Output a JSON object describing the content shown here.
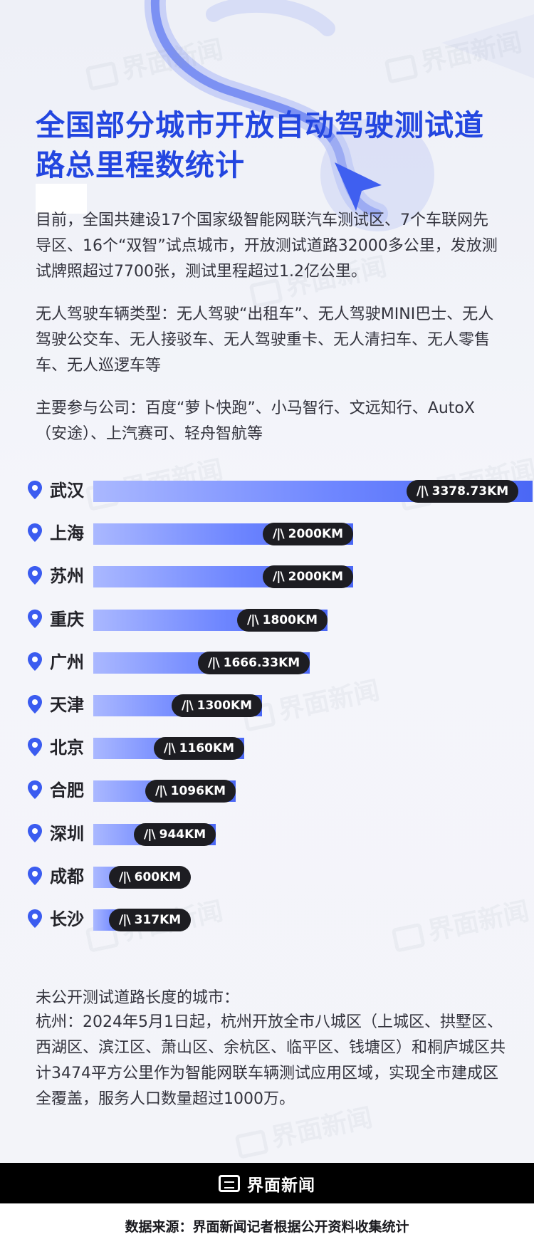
{
  "title": "全国部分城市开放自动驾驶测试道路总里程数统计",
  "paragraphs": {
    "intro": "目前，全国共建设17个国家级智能网联汽车测试区、7个车联网先导区、16个“双智”试点城市，开放测试道路32000多公里，发放测试牌照超过7700张，测试里程超过1.2亿公里。",
    "vehicles": "无人驾驶车辆类型：无人驾驶“出租车”、无人驾驶MINI巴士、无人驾驶公交车、无人接驳车、无人驾驶重卡、无人清扫车、无人零售车、无人巡逻车等",
    "companies": "主要参与公司：百度“萝卜快跑”、小马智行、文远知行、AutoX（安途）、上汽赛可、轻舟智航等"
  },
  "chart_data": {
    "type": "bar",
    "orientation": "horizontal",
    "unit": "KM",
    "categories": [
      "武汉",
      "上海",
      "苏州",
      "重庆",
      "广州",
      "天津",
      "北京",
      "合肥",
      "深圳",
      "成都",
      "长沙"
    ],
    "values": [
      3378.73,
      2000,
      2000,
      1800,
      1666.33,
      1300,
      1160,
      1096,
      944,
      600,
      317
    ],
    "value_labels": [
      "3378.73KM",
      "2000KM",
      "2000KM",
      "1800KM",
      "1666.33KM",
      "1300KM",
      "1160KM",
      "1096KM",
      "944KM",
      "600KM",
      "317KM"
    ],
    "xlim": [
      0,
      3378.73
    ]
  },
  "footnote": {
    "title": "未公开测试道路长度的城市：",
    "text": "杭州：2024年5月1日起，杭州开放全市八城区（上城区、拱墅区、西湖区、滨江区、萧山区、余杭区、临平区、钱塘区）和桐庐城区共计3474平方公里作为智能网联车辆测试应用区域，实现全市建成区全覆盖，服务人口数量超过1000万。"
  },
  "brand": {
    "name": "界面新闻",
    "logo_icon": "jiemian-logo-icon"
  },
  "source": "数据来源：界面新闻记者根据公开资料收集统计",
  "watermark": "界面新闻",
  "colors": {
    "title": "#2346e0",
    "bar_start": "#aab8ff",
    "bar_end": "#4a67f5",
    "pin": "#3b5cf0",
    "pill": "#1d1d22"
  },
  "icons": {
    "row_marker": "map-pin-icon",
    "value_marker": "road-icon"
  }
}
